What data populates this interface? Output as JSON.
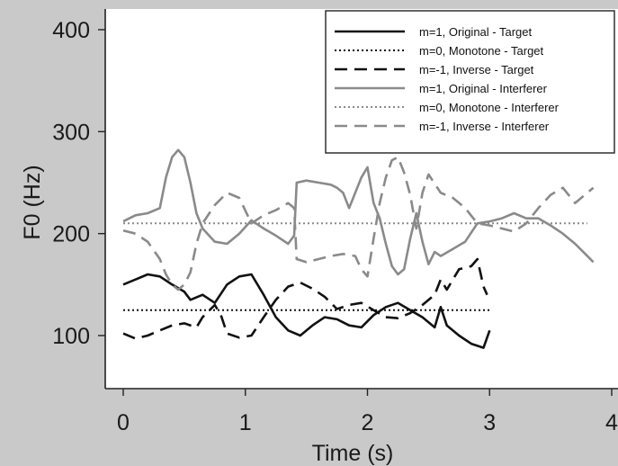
{
  "chart_data": {
    "type": "line",
    "xlabel": "Time (s)",
    "ylabel": "F0 (Hz)",
    "xlim": [
      0,
      4
    ],
    "ylim": [
      50,
      420
    ],
    "x_ticks": [
      0,
      1,
      2,
      3,
      4
    ],
    "y_ticks": [
      100,
      200,
      300,
      400
    ],
    "grid": false,
    "legend_position": "top-right",
    "series": [
      {
        "name": "m=1, Original - Target",
        "color": "#111111",
        "style": "solid",
        "points": [
          [
            0,
            150
          ],
          [
            0.1,
            155
          ],
          [
            0.2,
            160
          ],
          [
            0.3,
            158
          ],
          [
            0.4,
            150
          ],
          [
            0.5,
            143
          ],
          [
            0.55,
            135
          ],
          [
            0.65,
            140
          ],
          [
            0.75,
            132
          ],
          [
            0.85,
            150
          ],
          [
            0.95,
            158
          ],
          [
            1.05,
            160
          ],
          [
            1.15,
            140
          ],
          [
            1.25,
            118
          ],
          [
            1.35,
            105
          ],
          [
            1.45,
            100
          ],
          [
            1.55,
            110
          ],
          [
            1.65,
            118
          ],
          [
            1.75,
            116
          ],
          [
            1.85,
            110
          ],
          [
            1.95,
            108
          ],
          [
            2.05,
            120
          ],
          [
            2.15,
            128
          ],
          [
            2.25,
            132
          ],
          [
            2.35,
            125
          ],
          [
            2.45,
            118
          ],
          [
            2.55,
            108
          ],
          [
            2.6,
            128
          ],
          [
            2.65,
            110
          ],
          [
            2.75,
            100
          ],
          [
            2.85,
            92
          ],
          [
            2.95,
            88
          ],
          [
            3.0,
            105
          ]
        ]
      },
      {
        "name": "m=0, Monotone - Target",
        "color": "#111111",
        "style": "dotted",
        "points": [
          [
            0,
            125
          ],
          [
            3.0,
            125
          ]
        ]
      },
      {
        "name": "m=-1, Inverse - Target",
        "color": "#111111",
        "style": "dashed",
        "points": [
          [
            0,
            102
          ],
          [
            0.1,
            97
          ],
          [
            0.2,
            100
          ],
          [
            0.3,
            105
          ],
          [
            0.4,
            110
          ],
          [
            0.5,
            112
          ],
          [
            0.6,
            108
          ],
          [
            0.65,
            118
          ],
          [
            0.75,
            130
          ],
          [
            0.8,
            120
          ],
          [
            0.85,
            102
          ],
          [
            0.95,
            98
          ],
          [
            1.05,
            100
          ],
          [
            1.15,
            118
          ],
          [
            1.25,
            135
          ],
          [
            1.35,
            148
          ],
          [
            1.45,
            152
          ],
          [
            1.55,
            146
          ],
          [
            1.65,
            138
          ],
          [
            1.75,
            126
          ],
          [
            1.85,
            130
          ],
          [
            1.95,
            132
          ],
          [
            2.05,
            125
          ],
          [
            2.15,
            118
          ],
          [
            2.25,
            117
          ],
          [
            2.35,
            122
          ],
          [
            2.45,
            130
          ],
          [
            2.55,
            140
          ],
          [
            2.6,
            155
          ],
          [
            2.65,
            145
          ],
          [
            2.75,
            165
          ],
          [
            2.85,
            168
          ],
          [
            2.9,
            175
          ],
          [
            2.95,
            148
          ],
          [
            2.98,
            140
          ]
        ]
      },
      {
        "name": "m=1, Original - Interferer",
        "color": "#8a8a8a",
        "style": "solid",
        "points": [
          [
            0,
            212
          ],
          [
            0.1,
            218
          ],
          [
            0.2,
            220
          ],
          [
            0.3,
            225
          ],
          [
            0.35,
            255
          ],
          [
            0.4,
            275
          ],
          [
            0.45,
            282
          ],
          [
            0.5,
            275
          ],
          [
            0.55,
            250
          ],
          [
            0.6,
            220
          ],
          [
            0.65,
            205
          ],
          [
            0.75,
            192
          ],
          [
            0.85,
            190
          ],
          [
            0.95,
            200
          ],
          [
            1.05,
            213
          ],
          [
            1.15,
            205
          ],
          [
            1.25,
            198
          ],
          [
            1.35,
            190
          ],
          [
            1.4,
            198
          ],
          [
            1.42,
            250
          ],
          [
            1.5,
            252
          ],
          [
            1.6,
            250
          ],
          [
            1.7,
            248
          ],
          [
            1.75,
            245
          ],
          [
            1.8,
            240
          ],
          [
            1.85,
            225
          ],
          [
            1.9,
            240
          ],
          [
            1.95,
            255
          ],
          [
            2.0,
            265
          ],
          [
            2.05,
            230
          ],
          [
            2.1,
            215
          ],
          [
            2.15,
            190
          ],
          [
            2.2,
            168
          ],
          [
            2.25,
            160
          ],
          [
            2.3,
            165
          ],
          [
            2.35,
            195
          ],
          [
            2.4,
            220
          ],
          [
            2.45,
            192
          ],
          [
            2.5,
            170
          ],
          [
            2.55,
            182
          ],
          [
            2.6,
            178
          ],
          [
            2.7,
            185
          ],
          [
            2.8,
            192
          ],
          [
            2.9,
            210
          ],
          [
            3.0,
            212
          ],
          [
            3.1,
            215
          ],
          [
            3.2,
            220
          ],
          [
            3.3,
            215
          ],
          [
            3.4,
            215
          ],
          [
            3.5,
            208
          ],
          [
            3.6,
            200
          ],
          [
            3.7,
            190
          ],
          [
            3.8,
            178
          ],
          [
            3.85,
            172
          ]
        ]
      },
      {
        "name": "m=0, Monotone - Interferer",
        "color": "#8a8a8a",
        "style": "dotted",
        "points": [
          [
            0,
            210
          ],
          [
            3.8,
            210
          ]
        ]
      },
      {
        "name": "m=-1, Inverse - Interferer",
        "color": "#8a8a8a",
        "style": "dashed",
        "points": [
          [
            0,
            203
          ],
          [
            0.1,
            200
          ],
          [
            0.2,
            192
          ],
          [
            0.3,
            175
          ],
          [
            0.35,
            160
          ],
          [
            0.4,
            150
          ],
          [
            0.45,
            145
          ],
          [
            0.5,
            150
          ],
          [
            0.55,
            162
          ],
          [
            0.6,
            190
          ],
          [
            0.65,
            210
          ],
          [
            0.75,
            228
          ],
          [
            0.85,
            240
          ],
          [
            0.95,
            235
          ],
          [
            1.05,
            210
          ],
          [
            1.15,
            218
          ],
          [
            1.25,
            223
          ],
          [
            1.35,
            230
          ],
          [
            1.4,
            225
          ],
          [
            1.42,
            175
          ],
          [
            1.5,
            172
          ],
          [
            1.6,
            175
          ],
          [
            1.7,
            178
          ],
          [
            1.8,
            180
          ],
          [
            1.9,
            178
          ],
          [
            1.95,
            165
          ],
          [
            2.0,
            158
          ],
          [
            2.05,
            195
          ],
          [
            2.1,
            230
          ],
          [
            2.15,
            255
          ],
          [
            2.2,
            272
          ],
          [
            2.25,
            275
          ],
          [
            2.3,
            260
          ],
          [
            2.35,
            238
          ],
          [
            2.4,
            205
          ],
          [
            2.45,
            240
          ],
          [
            2.5,
            258
          ],
          [
            2.6,
            240
          ],
          [
            2.7,
            235
          ],
          [
            2.8,
            225
          ],
          [
            2.9,
            210
          ],
          [
            3.0,
            208
          ],
          [
            3.1,
            205
          ],
          [
            3.2,
            202
          ],
          [
            3.3,
            210
          ],
          [
            3.4,
            225
          ],
          [
            3.5,
            238
          ],
          [
            3.6,
            245
          ],
          [
            3.7,
            230
          ],
          [
            3.85,
            245
          ]
        ]
      }
    ]
  }
}
